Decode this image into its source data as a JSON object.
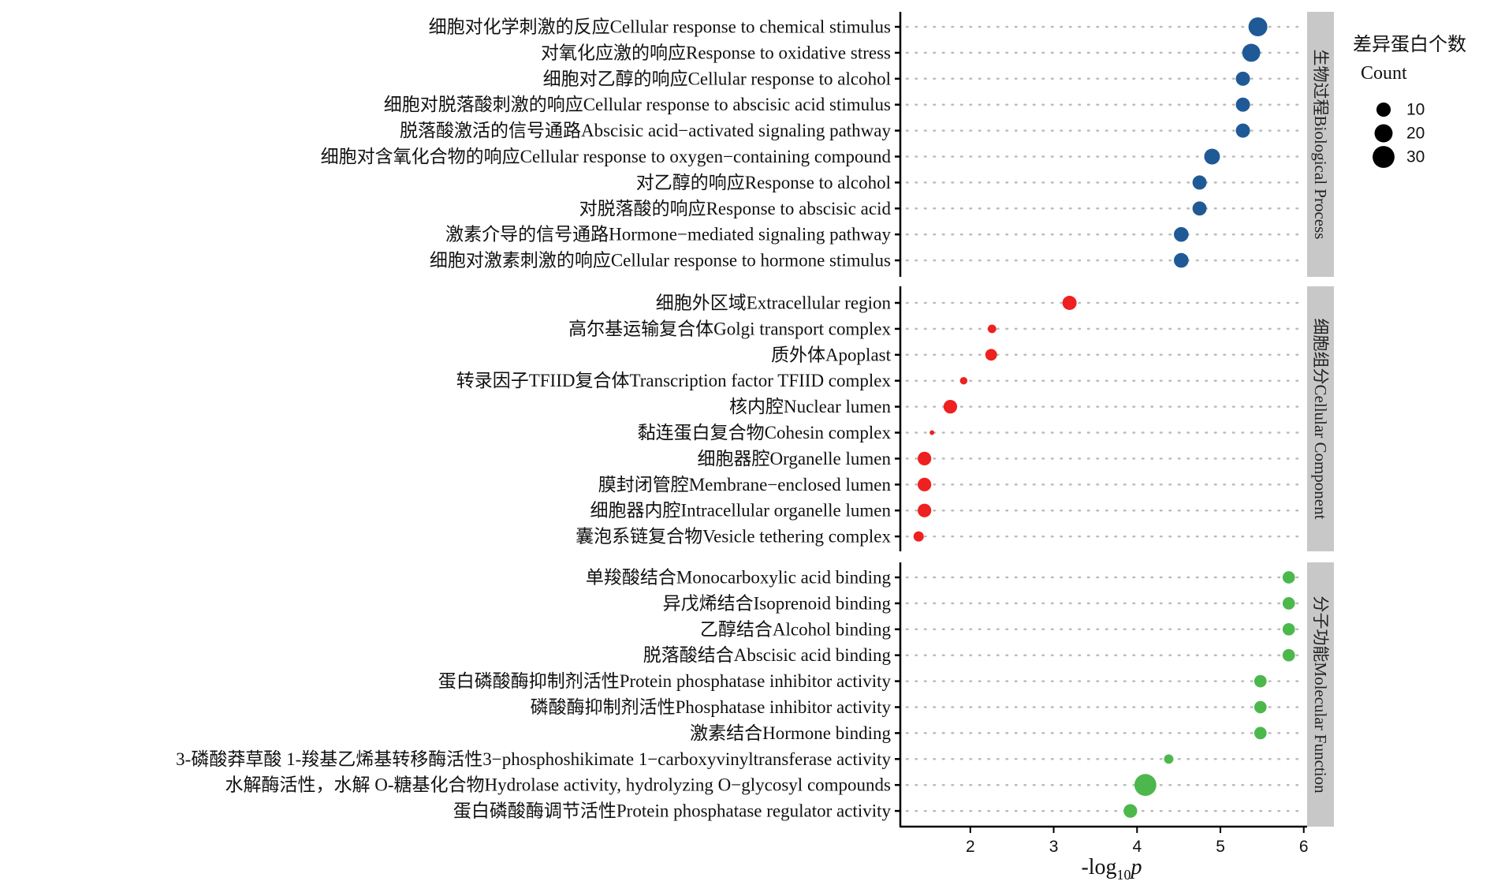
{
  "chart_data": {
    "type": "scatter",
    "title": "",
    "xlabel": "-log10p",
    "xlabel_parts": {
      "prefix": "-log",
      "subscript": "10",
      "italic": "p"
    },
    "ylabel": "",
    "xlim": [
      1.16,
      6.04
    ],
    "xticks": [
      2,
      3,
      4,
      5,
      6
    ],
    "grid": "dotted horizontal",
    "legend": {
      "title_cn": "差异蛋白个数",
      "title_en": "Count",
      "placement": "right",
      "sizes": [
        10,
        20,
        30
      ]
    },
    "panels": [
      {
        "strip": "生物过程Biological Process",
        "color": "#1f5a96",
        "terms": [
          {
            "label": "细胞对化学刺激的反应Cellular response to chemical stimulus",
            "x": 5.45,
            "count": 22
          },
          {
            "label": "对氧化应激的响应Response to oxidative stress",
            "x": 5.37,
            "count": 20
          },
          {
            "label": "细胞对乙醇的响应Cellular response to alcohol",
            "x": 5.27,
            "count": 12
          },
          {
            "label": "细胞对脱落酸刺激的响应Cellular response to abscisic acid stimulus",
            "x": 5.27,
            "count": 12
          },
          {
            "label": "脱落酸激活的信号通路Abscisic acid−activated signaling pathway",
            "x": 5.27,
            "count": 12
          },
          {
            "label": "细胞对含氧化合物的响应Cellular response to oxygen−containing compound",
            "x": 4.9,
            "count": 15
          },
          {
            "label": "对乙醇的响应Response to alcohol",
            "x": 4.75,
            "count": 12
          },
          {
            "label": "对脱落酸的响应Response to abscisic acid",
            "x": 4.75,
            "count": 12
          },
          {
            "label": "激素介导的信号通路Hormone−mediated signaling pathway",
            "x": 4.53,
            "count": 13
          },
          {
            "label": "细胞对激素刺激的响应Cellular response to hormone stimulus",
            "x": 4.53,
            "count": 13
          }
        ]
      },
      {
        "strip": "细胞组分Cellular Component",
        "color": "#ee2020",
        "terms": [
          {
            "label": "细胞外区域Extracellular region",
            "x": 3.19,
            "count": 12
          },
          {
            "label": "高尔基运输复合体Golgi transport complex",
            "x": 2.26,
            "count": 4
          },
          {
            "label": "质外体Apoplast",
            "x": 2.25,
            "count": 8
          },
          {
            "label": "转录因子TFIID复合体Transcription factor TFIID complex",
            "x": 1.92,
            "count": 3
          },
          {
            "label": "核内腔Nuclear lumen",
            "x": 1.76,
            "count": 11
          },
          {
            "label": "黏连蛋白复合物Cohesin complex",
            "x": 1.54,
            "count": 1
          },
          {
            "label": "细胞器腔Organelle lumen",
            "x": 1.45,
            "count": 11
          },
          {
            "label": "膜封闭管腔Membrane−enclosed lumen",
            "x": 1.45,
            "count": 11
          },
          {
            "label": "细胞器内腔Intracellular organelle lumen",
            "x": 1.45,
            "count": 11
          },
          {
            "label": "囊泡系链复合物Vesicle tethering complex",
            "x": 1.38,
            "count": 6
          }
        ]
      },
      {
        "strip": "分子功能Molecular Function",
        "color": "#4cb84c",
        "terms": [
          {
            "label": "单羧酸结合Monocarboxylic acid binding",
            "x": 5.82,
            "count": 9
          },
          {
            "label": "异戊烯结合Isoprenoid binding",
            "x": 5.82,
            "count": 9
          },
          {
            "label": "乙醇结合Alcohol binding",
            "x": 5.82,
            "count": 9
          },
          {
            "label": "脱落酸结合Abscisic acid binding",
            "x": 5.82,
            "count": 9
          },
          {
            "label": "蛋白磷酸酶抑制剂活性Protein phosphatase inhibitor activity",
            "x": 5.48,
            "count": 9
          },
          {
            "label": "磷酸酶抑制剂活性Phosphatase inhibitor activity",
            "x": 5.48,
            "count": 9
          },
          {
            "label": "激素结合Hormone binding",
            "x": 5.48,
            "count": 9
          },
          {
            "label": "3-磷酸莽草酸 1-羧基乙烯基转移酶活性3−phosphoshikimate 1−carboxyvinyltransferase activity",
            "x": 4.38,
            "count": 5
          },
          {
            "label": "水解酶活性，水解 O-糖基化合物Hydrolase activity, hydrolyzing O−glycosyl compounds",
            "x": 4.1,
            "count": 30
          },
          {
            "label": "蛋白磷酸酶调节活性Protein phosphatase regulator activity",
            "x": 3.92,
            "count": 11
          }
        ]
      }
    ]
  }
}
